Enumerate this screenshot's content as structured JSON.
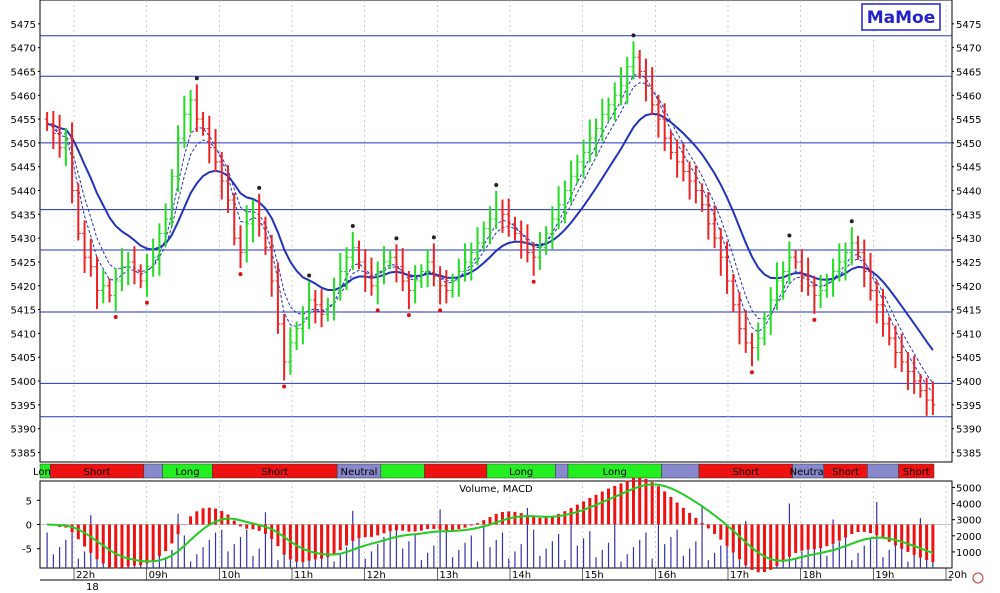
{
  "logo": "MaMoe",
  "colors": {
    "up": "#22dd22",
    "down": "#ee2222",
    "neutral": "#222222",
    "ma": "#2233bb",
    "level": "#2233bb",
    "long": "#22ee22",
    "short": "#ee1111",
    "mixed": "#8888cc",
    "macd": "#22cc22",
    "hist": "#ee1111",
    "volume": "#3333aa"
  },
  "chart_data": [
    {
      "type": "candlestick",
      "y_ticks": [
        "5475",
        "5470",
        "5465",
        "5460",
        "5455",
        "5450",
        "5445",
        "5440",
        "5435",
        "5430",
        "5425",
        "5420",
        "5415",
        "5410",
        "5405",
        "5400",
        "5395",
        "5390",
        "5385"
      ],
      "ylim": [
        5383,
        5480
      ],
      "x_ticks": [
        "22h",
        "09h",
        "10h",
        "11h",
        "12h",
        "13h",
        "14h",
        "15h",
        "16h",
        "17h",
        "18h",
        "19h",
        "20h"
      ],
      "x_sub_label": "18",
      "level_lines": [
        5472.5,
        5464.0,
        5450.0,
        5436.0,
        5427.5,
        5414.5,
        5399.5,
        5392.5
      ],
      "close": [
        5454,
        5452,
        5449,
        5451,
        5440,
        5431,
        5426,
        5424,
        5419,
        5420,
        5418,
        5421,
        5424,
        5425,
        5423,
        5421,
        5424,
        5426,
        5431,
        5434,
        5443,
        5451,
        5456,
        5459,
        5455,
        5453,
        5449,
        5446,
        5442,
        5438,
        5430,
        5427,
        5433,
        5436,
        5433,
        5428,
        5421,
        5412,
        5404,
        5408,
        5411,
        5413,
        5417,
        5416,
        5414,
        5416,
        5419,
        5423,
        5426,
        5428,
        5425,
        5422,
        5420,
        5423,
        5425,
        5426,
        5424,
        5421,
        5419,
        5421,
        5423,
        5425,
        5422,
        5420,
        5419,
        5421,
        5423,
        5425,
        5427,
        5429,
        5432,
        5434,
        5436,
        5435,
        5433,
        5431,
        5429,
        5427,
        5426,
        5428,
        5431,
        5434,
        5437,
        5440,
        5443,
        5446,
        5448,
        5451,
        5453,
        5456,
        5458,
        5460,
        5462,
        5466,
        5468,
        5465,
        5462,
        5458,
        5455,
        5451,
        5448,
        5446,
        5444,
        5442,
        5440,
        5437,
        5433,
        5430,
        5426,
        5421,
        5416,
        5411,
        5408,
        5407,
        5409,
        5413,
        5417,
        5421,
        5423,
        5426,
        5425,
        5422,
        5420,
        5418,
        5419,
        5421,
        5423,
        5425,
        5427,
        5429,
        5427,
        5423,
        5419,
        5416,
        5412,
        5409,
        5406,
        5404,
        5402,
        5400,
        5398,
        5396,
        5395
      ],
      "panel_title": "Volume, MACD",
      "macd_ticks": [
        "5",
        "0",
        "-5"
      ],
      "volume_ticks": [
        "5000",
        "4000",
        "3000",
        "2000",
        "1000"
      ],
      "macd_ylim": [
        -9,
        9
      ],
      "volume_ylim": [
        0,
        5400
      ],
      "sessions": [
        {
          "label": "Long",
          "state": "long",
          "end": 1
        },
        {
          "label": "Short",
          "state": "short",
          "end": 16
        },
        {
          "label": "",
          "state": "mixed",
          "end": 19
        },
        {
          "label": "Long",
          "state": "long",
          "end": 27
        },
        {
          "label": "Short",
          "state": "short",
          "end": 47
        },
        {
          "label": "Neutral",
          "state": "mixed",
          "end": 54
        },
        {
          "label": "",
          "state": "long",
          "end": 61
        },
        {
          "label": "",
          "state": "short",
          "end": 71
        },
        {
          "label": "Long",
          "state": "long",
          "end": 82
        },
        {
          "label": "",
          "state": "mixed",
          "end": 84
        },
        {
          "label": "Long",
          "state": "long",
          "end": 99
        },
        {
          "label": "",
          "state": "mixed",
          "end": 105
        },
        {
          "label": "Short",
          "state": "short",
          "end": 120
        },
        {
          "label": "Neutral",
          "state": "mixed",
          "end": 125
        },
        {
          "label": "Short",
          "state": "short",
          "end": 132
        },
        {
          "label": "",
          "state": "mixed",
          "end": 137
        },
        {
          "label": "Short",
          "state": "short",
          "end": 148
        }
      ]
    }
  ]
}
